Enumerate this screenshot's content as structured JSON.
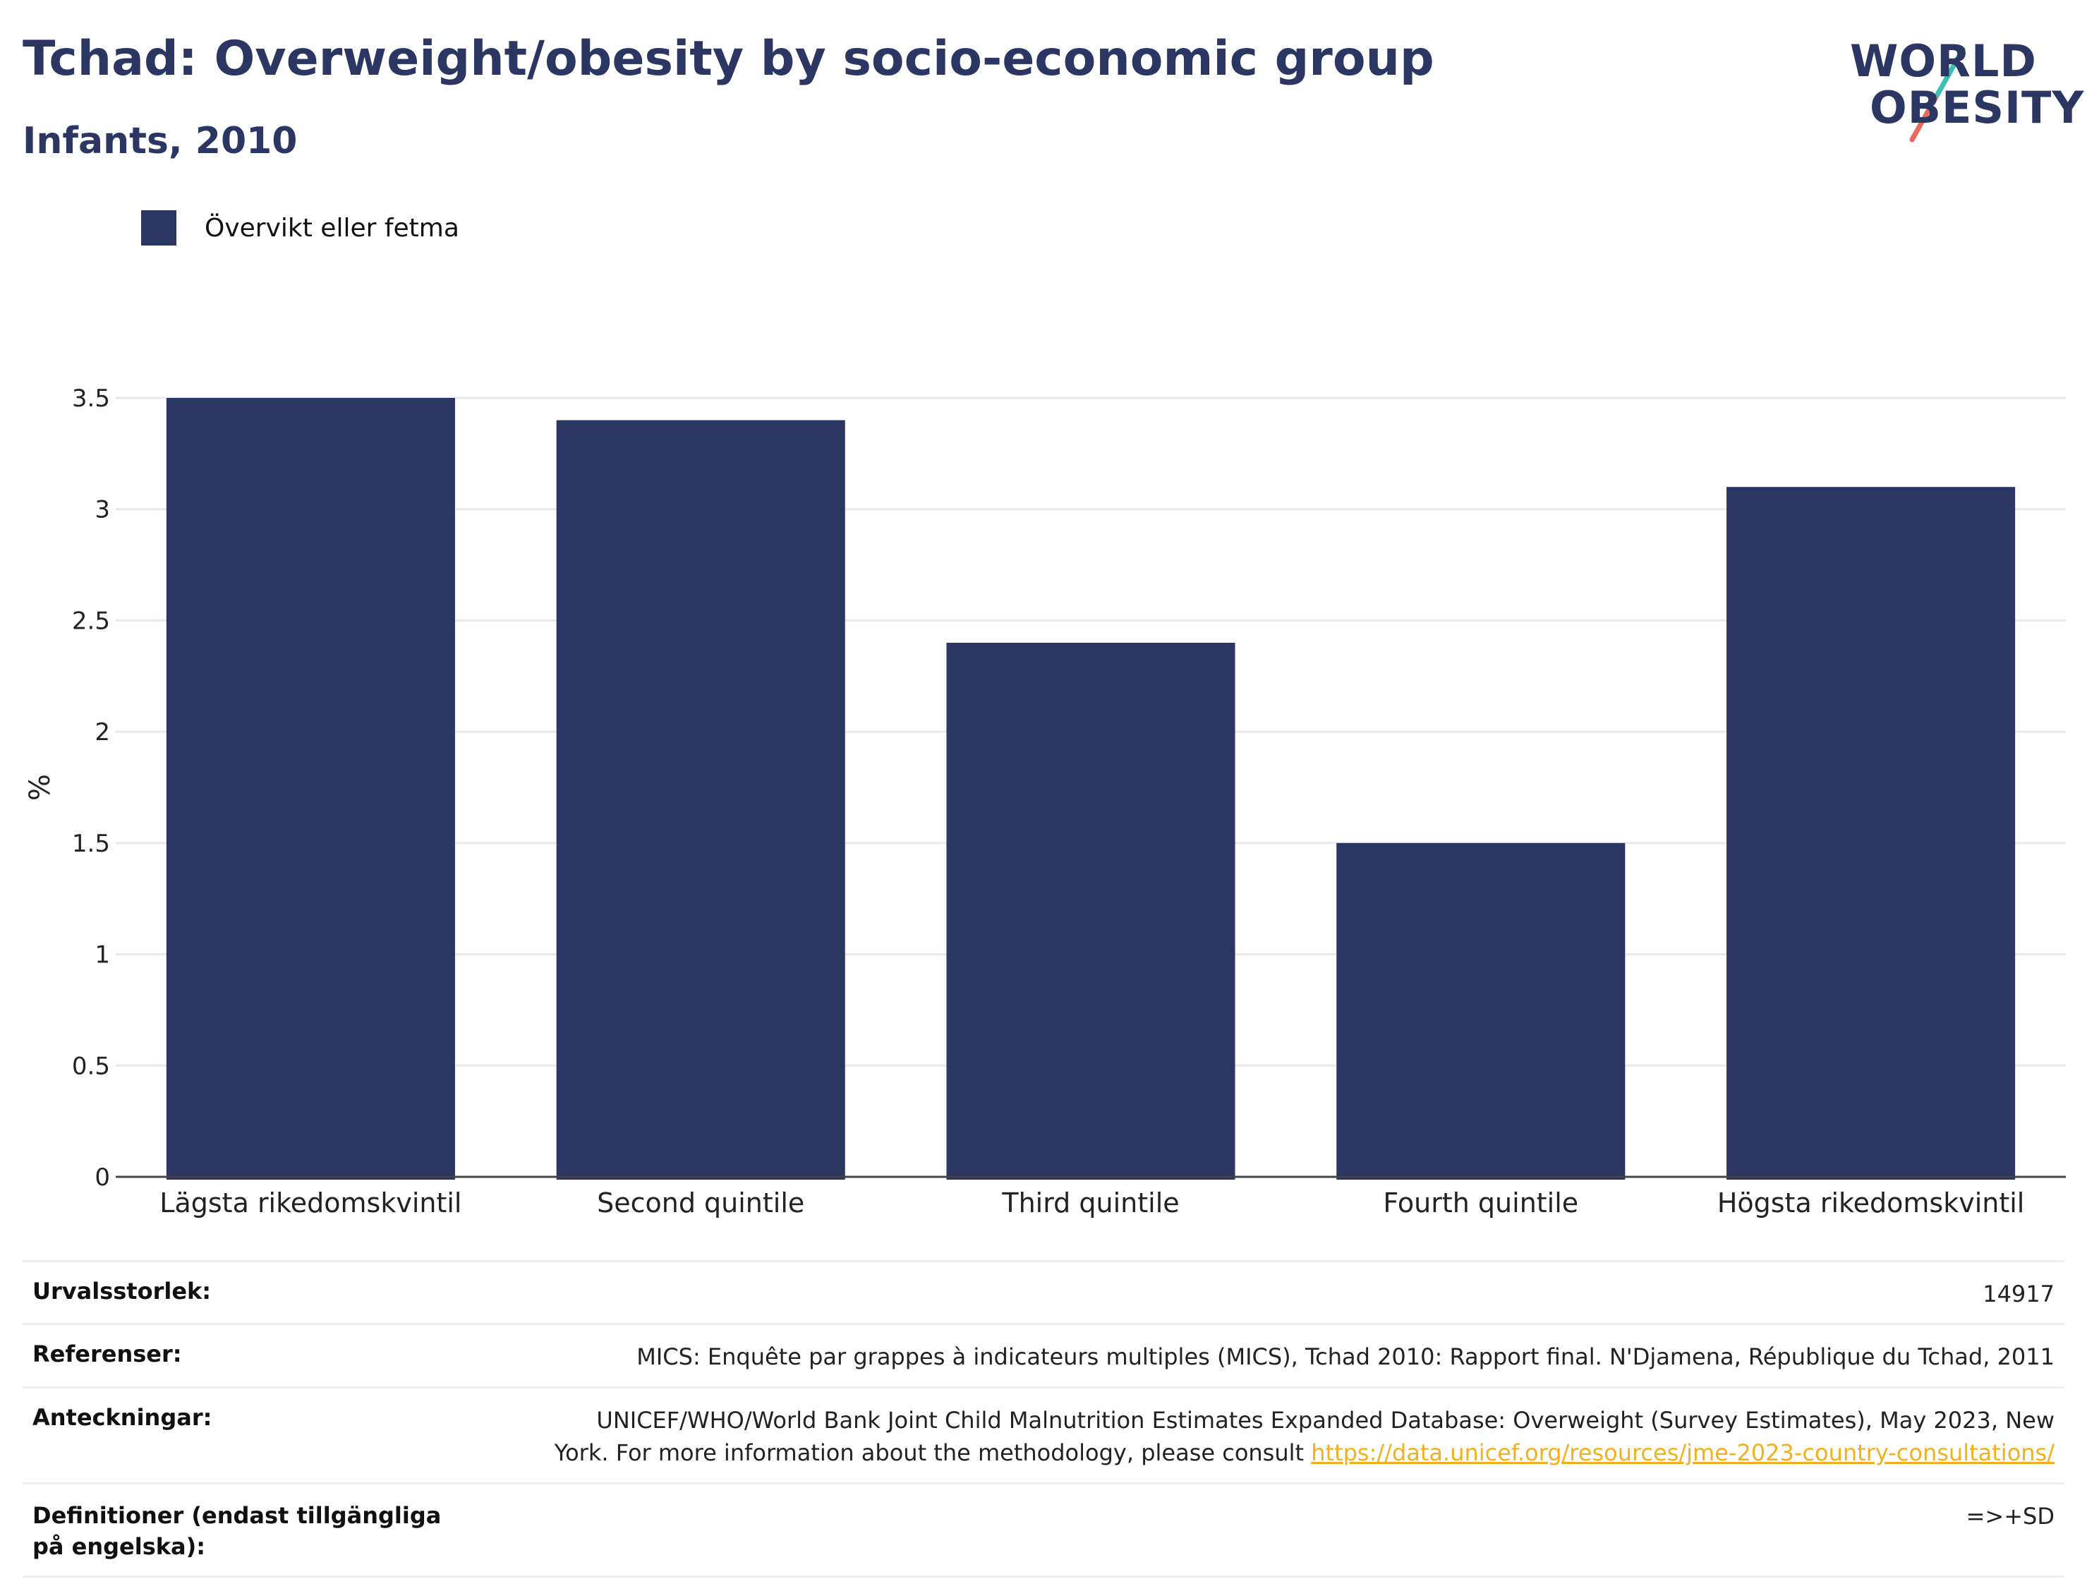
{
  "title": "Tchad: Overweight/obesity by socio-economic group",
  "subtitle": "Infants, 2010",
  "logo": {
    "line1": "WORLD",
    "line2": "OBESITY"
  },
  "legend": {
    "label": "Övervikt eller fetma",
    "color": "#2b3663"
  },
  "chart_data": {
    "type": "bar",
    "categories": [
      "Lägsta rikedomskvintil",
      "Second quintile",
      "Third quintile",
      "Fourth quintile",
      "Högsta rikedomskvintil"
    ],
    "series": [
      {
        "name": "Övervikt eller fetma",
        "values": [
          3.5,
          3.4,
          2.4,
          1.5,
          3.1
        ]
      }
    ],
    "ylabel": "%",
    "ylim": [
      0,
      3.5
    ],
    "yticks": [
      "0",
      "0.5",
      "1",
      "1.5",
      "2",
      "2.5",
      "3",
      "3.5"
    ],
    "grid": true,
    "bar_color": "#2b3663"
  },
  "table": {
    "sample_label": "Urvalsstorlek:",
    "sample_value": "14917",
    "refs_label": "Referenser:",
    "refs_value": "MICS: Enquête par grappes à indicateurs multiples (MICS), Tchad 2010: Rapport final. N'Djamena, République du Tchad, 2011",
    "notes_label": "Anteckningar:",
    "notes_line1": "UNICEF/WHO/World Bank Joint Child Malnutrition Estimates Expanded Database: Overweight (Survey Estimates), May 2023, New",
    "notes_line2": "York. For more information about the methodology, please consult ",
    "notes_link": "https://data.unicef.org/resources/jme-2023-country-consultations/",
    "defs_label": "Definitioner (endast tillgängliga på engelska):",
    "defs_value": "=>+SD"
  }
}
